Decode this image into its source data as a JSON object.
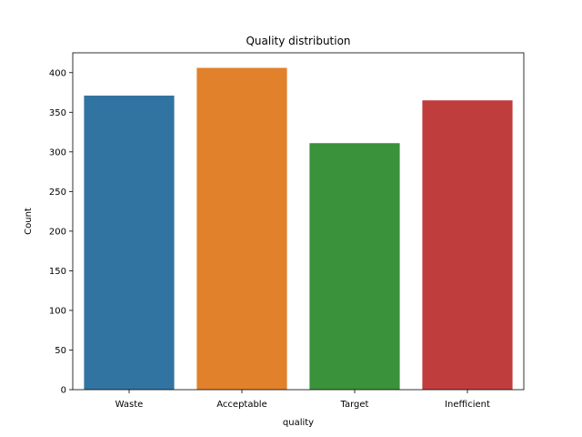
{
  "chart_data": {
    "type": "bar",
    "title": "Quality distribution",
    "xlabel": "quality",
    "ylabel": "Count",
    "categories": [
      "Waste",
      "Acceptable",
      "Target",
      "Inefficient"
    ],
    "values": [
      371,
      406,
      311,
      365
    ],
    "colors": [
      "#3274a1",
      "#e1812c",
      "#3a923a",
      "#c03d3e"
    ],
    "ylim": [
      0,
      425
    ],
    "yticks": [
      0,
      50,
      100,
      150,
      200,
      250,
      300,
      350,
      400
    ],
    "grid": false,
    "legend": "none"
  }
}
